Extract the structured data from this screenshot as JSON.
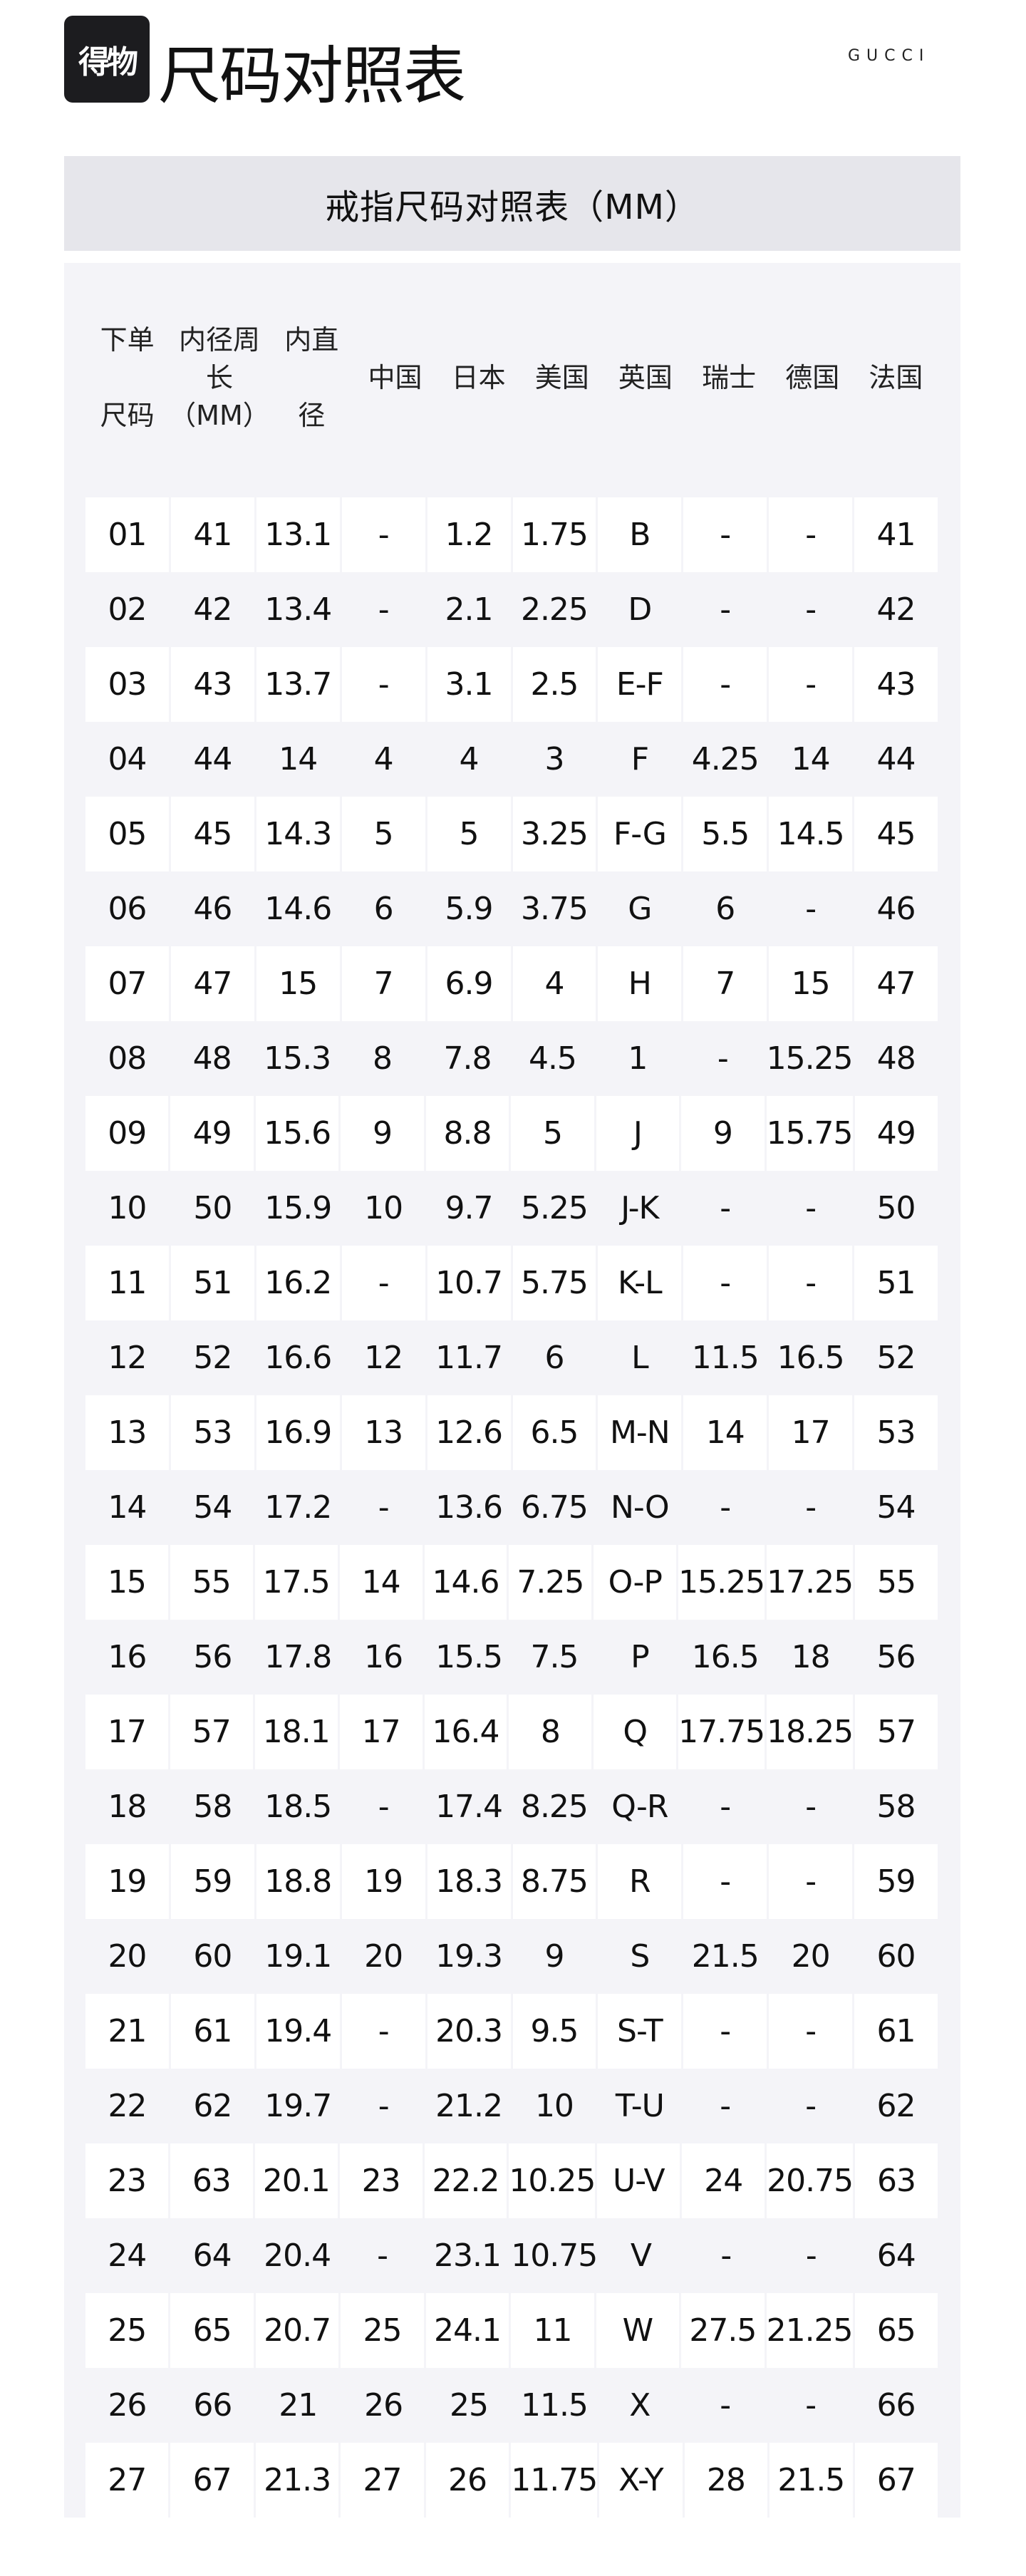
{
  "header": {
    "logo_text": "得物",
    "title": "尺码对照表",
    "brand": "GUCCI"
  },
  "table": {
    "title": "戒指尺码对照表（MM）",
    "columns": [
      [
        "下单",
        "尺码"
      ],
      [
        "内径周",
        "长",
        "（MM）"
      ],
      [
        "内直",
        "径"
      ],
      [
        "中国"
      ],
      [
        "日本"
      ],
      [
        "美国"
      ],
      [
        "英国"
      ],
      [
        "瑞士"
      ],
      [
        "德国"
      ],
      [
        "法国"
      ]
    ],
    "rows": [
      [
        "01",
        "41",
        "13.1",
        "-",
        "1.2",
        "1.75",
        "B",
        "-",
        "-",
        "41"
      ],
      [
        "02",
        "42",
        "13.4",
        "-",
        "2.1",
        "2.25",
        "D",
        "-",
        "-",
        "42"
      ],
      [
        "03",
        "43",
        "13.7",
        "-",
        "3.1",
        "2.5",
        "E-F",
        "-",
        "-",
        "43"
      ],
      [
        "04",
        "44",
        "14",
        "4",
        "4",
        "3",
        "F",
        "4.25",
        "14",
        "44"
      ],
      [
        "05",
        "45",
        "14.3",
        "5",
        "5",
        "3.25",
        "F-G",
        "5.5",
        "14.5",
        "45"
      ],
      [
        "06",
        "46",
        "14.6",
        "6",
        "5.9",
        "3.75",
        "G",
        "6",
        "-",
        "46"
      ],
      [
        "07",
        "47",
        "15",
        "7",
        "6.9",
        "4",
        "H",
        "7",
        "15",
        "47"
      ],
      [
        "08",
        "48",
        "15.3",
        "8",
        "7.8",
        "4.5",
        "1",
        "-",
        "15.25",
        "48"
      ],
      [
        "09",
        "49",
        "15.6",
        "9",
        "8.8",
        "5",
        "J",
        "9",
        "15.75",
        "49"
      ],
      [
        "10",
        "50",
        "15.9",
        "10",
        "9.7",
        "5.25",
        "J-K",
        "-",
        "-",
        "50"
      ],
      [
        "11",
        "51",
        "16.2",
        "-",
        "10.7",
        "5.75",
        "K-L",
        "-",
        "-",
        "51"
      ],
      [
        "12",
        "52",
        "16.6",
        "12",
        "11.7",
        "6",
        "L",
        "11.5",
        "16.5",
        "52"
      ],
      [
        "13",
        "53",
        "16.9",
        "13",
        "12.6",
        "6.5",
        "M-N",
        "14",
        "17",
        "53"
      ],
      [
        "14",
        "54",
        "17.2",
        "-",
        "13.6",
        "6.75",
        "N-O",
        "-",
        "-",
        "54"
      ],
      [
        "15",
        "55",
        "17.5",
        "14",
        "14.6",
        "7.25",
        "O-P",
        "15.25",
        "17.25",
        "55"
      ],
      [
        "16",
        "56",
        "17.8",
        "16",
        "15.5",
        "7.5",
        "P",
        "16.5",
        "18",
        "56"
      ],
      [
        "17",
        "57",
        "18.1",
        "17",
        "16.4",
        "8",
        "Q",
        "17.75",
        "18.25",
        "57"
      ],
      [
        "18",
        "58",
        "18.5",
        "-",
        "17.4",
        "8.25",
        "Q-R",
        "-",
        "-",
        "58"
      ],
      [
        "19",
        "59",
        "18.8",
        "19",
        "18.3",
        "8.75",
        "R",
        "-",
        "-",
        "59"
      ],
      [
        "20",
        "60",
        "19.1",
        "20",
        "19.3",
        "9",
        "S",
        "21.5",
        "20",
        "60"
      ],
      [
        "21",
        "61",
        "19.4",
        "-",
        "20.3",
        "9.5",
        "S-T",
        "-",
        "-",
        "61"
      ],
      [
        "22",
        "62",
        "19.7",
        "-",
        "21.2",
        "10",
        "T-U",
        "-",
        "-",
        "62"
      ],
      [
        "23",
        "63",
        "20.1",
        "23",
        "22.2",
        "10.25",
        "U-V",
        "24",
        "20.75",
        "63"
      ],
      [
        "24",
        "64",
        "20.4",
        "-",
        "23.1",
        "10.75",
        "V",
        "-",
        "-",
        "64"
      ],
      [
        "25",
        "65",
        "20.7",
        "25",
        "24.1",
        "11",
        "W",
        "27.5",
        "21.25",
        "65"
      ],
      [
        "26",
        "66",
        "21",
        "26",
        "25",
        "11.5",
        "X",
        "-",
        "-",
        "66"
      ],
      [
        "27",
        "67",
        "21.3",
        "27",
        "26",
        "11.75",
        "X-Y",
        "28",
        "21.5",
        "67"
      ]
    ]
  }
}
